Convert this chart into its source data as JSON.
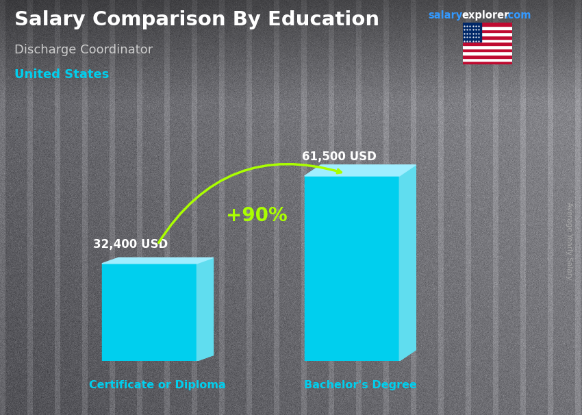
{
  "title": "Salary Comparison By Education",
  "subtitle": "Discharge Coordinator",
  "country": "United States",
  "ylabel": "Average Yearly Salary",
  "categories": [
    "Certificate or Diploma",
    "Bachelor's Degree"
  ],
  "values": [
    32400,
    61500
  ],
  "value_labels": [
    "32,400 USD",
    "61,500 USD"
  ],
  "pct_change": "+90%",
  "bar_color_front": "#00CFEE",
  "bar_color_side": "#60DDEF",
  "bar_color_top": "#A0EEFF",
  "title_color": "#FFFFFF",
  "subtitle_color": "#CCCCCC",
  "country_color": "#00CFEE",
  "category_color": "#00CFEE",
  "value_color": "#FFFFFF",
  "pct_color": "#AAFF00",
  "arrow_color": "#AAFF00",
  "salary_text_color": "#3399FF",
  "explorer_text_color": "#FFFFFF",
  "com_text_color": "#3399FF",
  "ylabel_color": "#AAAAAA",
  "bg_color": "#5a5a5a"
}
